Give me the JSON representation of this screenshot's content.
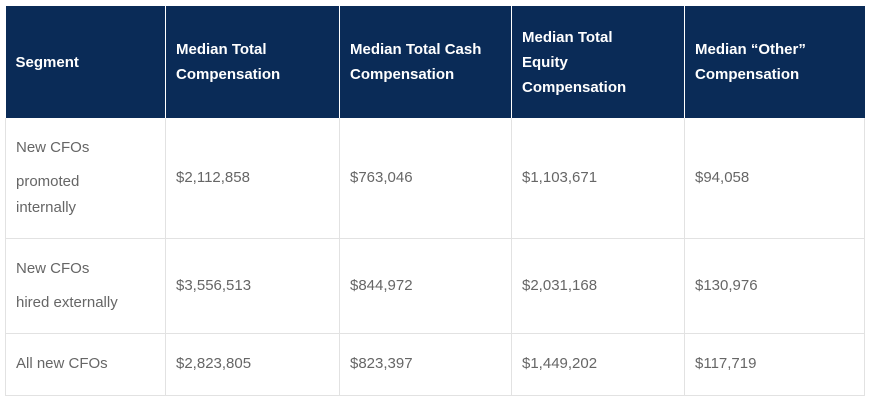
{
  "table": {
    "headers": [
      [
        "Segment"
      ],
      [
        "Median Total",
        "Compensation"
      ],
      [
        "Median Total Cash",
        "Compensation"
      ],
      [
        "Median Total",
        "Equity",
        "Compensation"
      ],
      [
        "Median “Other”",
        "Compensation"
      ]
    ],
    "rows": [
      {
        "segment": [
          "New CFOs",
          "promoted",
          "internally"
        ],
        "total": "$2,112,858",
        "cash": "$763,046",
        "equity": "$1,103,671",
        "other": "$94,058"
      },
      {
        "segment": [
          "New CFOs",
          "hired externally"
        ],
        "total": "$3,556,513",
        "cash": "$844,972",
        "equity": "$2,031,168",
        "other": "$130,976"
      },
      {
        "segment": [
          "All new CFOs"
        ],
        "total": "$2,823,805",
        "cash": "$823,397",
        "equity": "$1,449,202",
        "other": "$117,719"
      }
    ]
  },
  "colors": {
    "header_bg": "#0a2b57",
    "header_text": "#ffffff",
    "body_text": "#666666",
    "grid": "#e2e2e2"
  }
}
